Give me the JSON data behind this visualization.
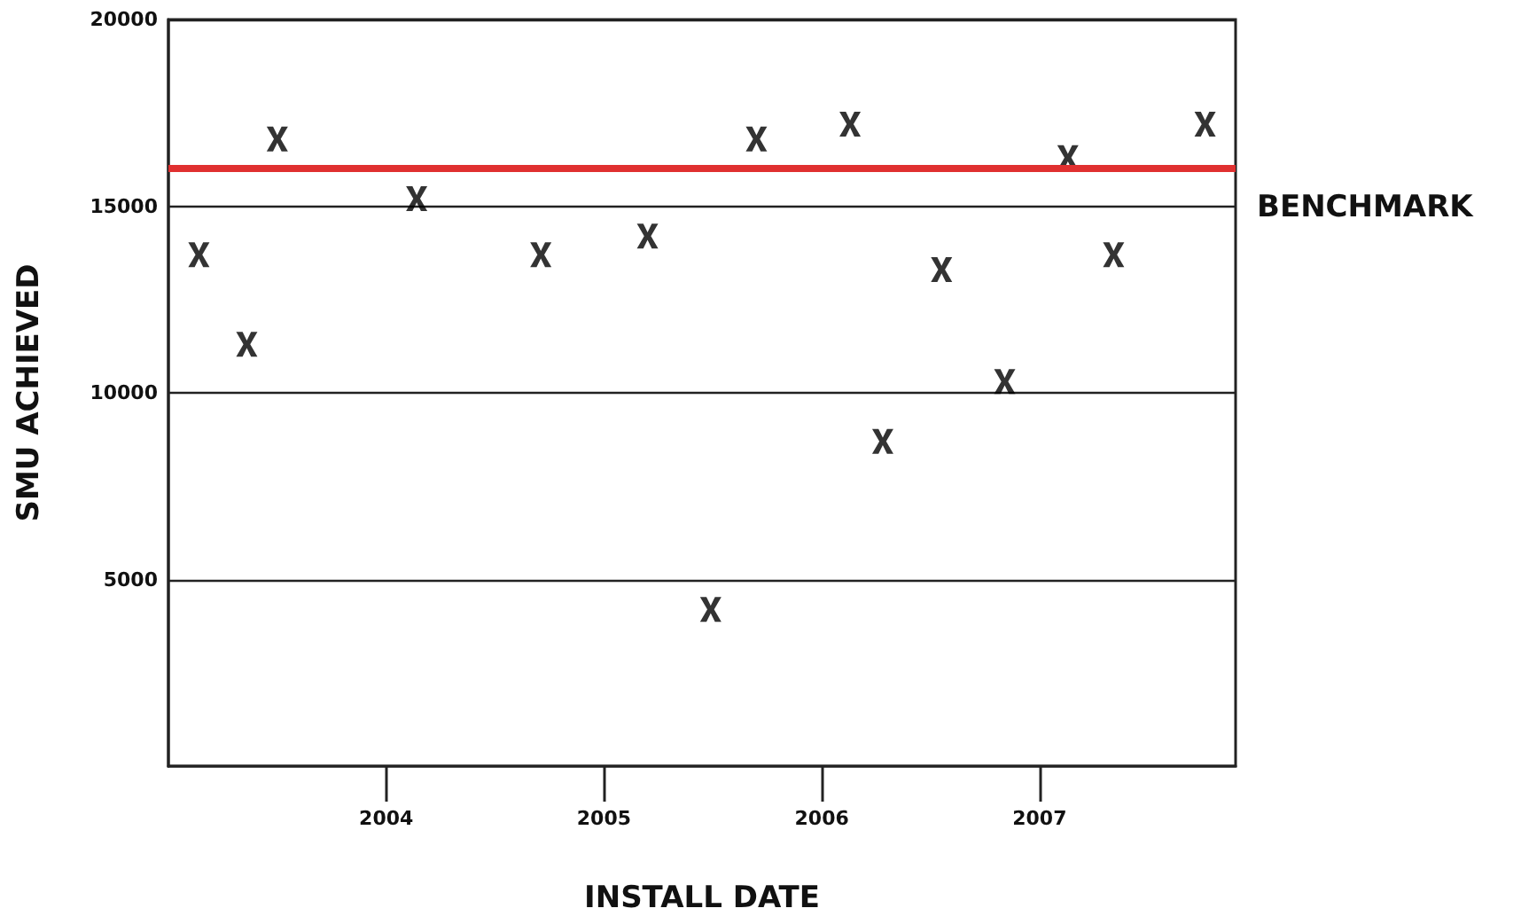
{
  "chart_data": {
    "type": "scatter",
    "xlabel": "INSTALL DATE",
    "ylabel": "SMU ACHIEVED",
    "x": [
      2003.14,
      2003.36,
      2003.5,
      2004.14,
      2004.71,
      2005.2,
      2005.49,
      2005.7,
      2006.13,
      2006.28,
      2006.55,
      2006.84,
      2007.13,
      2007.34,
      2007.76
    ],
    "series": [
      {
        "color": "#000000",
        "values": [
          13700,
          11300,
          16800,
          15200,
          13700,
          14200,
          4200,
          16800,
          17200,
          8700,
          13300,
          10300,
          16300,
          13700,
          17200
        ]
      }
    ],
    "xlim": [
      2003,
      2007.9
    ],
    "xticks": [
      2004,
      2005,
      2006,
      2007
    ],
    "ylim": [
      0,
      20000
    ],
    "yticks": [
      5000,
      10000,
      15000,
      20000
    ],
    "grid": "y",
    "marker": "cross",
    "ref_lines": [
      {
        "axis": "y",
        "value": 16000,
        "label": "BENCHMARK",
        "color": "#e03030"
      }
    ]
  }
}
